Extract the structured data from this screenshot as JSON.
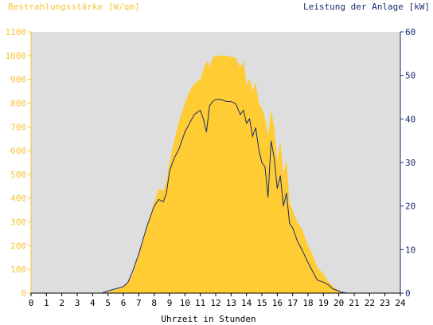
{
  "chart_data": {
    "type": "area",
    "title_left": "Bestrahlungsstärke [W/qm]",
    "title_right": "Leistung der Anlage [kW]",
    "xlabel": "Uhrzeit in Stunden",
    "xlim": [
      0,
      24
    ],
    "ylim_left": [
      0,
      1100
    ],
    "ylim_right": [
      0,
      60
    ],
    "x_ticks": [
      "0",
      "1",
      "2",
      "3",
      "4",
      "5",
      "6",
      "7",
      "8",
      "9",
      "10",
      "11",
      "12",
      "13",
      "14",
      "15",
      "16",
      "17",
      "18",
      "19",
      "20",
      "21",
      "22",
      "23",
      "24"
    ],
    "y_ticks_left": [
      "0",
      "100",
      "200",
      "300",
      "400",
      "500",
      "600",
      "700",
      "800",
      "900",
      "1000",
      "1100"
    ],
    "y_ticks_right": [
      "0",
      "10",
      "20",
      "30",
      "40",
      "50",
      "60"
    ],
    "colors": {
      "irradiance_fill": "#ffcc33",
      "power_line": "#1a2a6c",
      "plot_bg": "#dedede",
      "axis_left": "#f5c33b",
      "axis_right": "#1a2a6c"
    },
    "series": [
      {
        "unit": "W/qm",
        "axis": "left",
        "x": [
          0,
          4.6,
          5,
          5.5,
          6,
          6.3,
          6.6,
          7,
          7.5,
          8,
          8.3,
          8.6,
          8.8,
          9,
          9.3,
          9.6,
          10,
          10.3,
          10.6,
          11,
          11.3,
          11.5,
          11.6,
          11.8,
          12,
          12.3,
          12.7,
          13,
          13.3,
          13.6,
          13.8,
          14,
          14.2,
          14.4,
          14.6,
          14.8,
          15,
          15.2,
          15.4,
          15.6,
          15.8,
          16,
          16.2,
          16.4,
          16.6,
          16.8,
          17,
          17.3,
          17.6,
          18,
          18.3,
          18.6,
          19,
          19.3,
          19.6,
          20,
          20.2,
          20.5,
          21,
          24
        ],
        "y": [
          0,
          0,
          5,
          15,
          30,
          45,
          80,
          170,
          280,
          380,
          440,
          430,
          470,
          550,
          640,
          720,
          800,
          850,
          880,
          900,
          960,
          980,
          950,
          990,
          1000,
          1000,
          1000,
          995,
          990,
          950,
          980,
          880,
          900,
          850,
          890,
          800,
          780,
          740,
          660,
          770,
          700,
          560,
          640,
          500,
          560,
          380,
          350,
          300,
          270,
          200,
          160,
          110,
          80,
          50,
          30,
          10,
          5,
          2,
          0,
          0
        ]
      },
      {
        "unit": "kW",
        "axis": "right",
        "x": [
          0,
          4.6,
          5,
          5.5,
          6,
          6.3,
          6.6,
          7,
          7.5,
          8,
          8.3,
          8.6,
          8.8,
          9,
          9.3,
          9.6,
          10,
          10.3,
          10.6,
          11,
          11.2,
          11.4,
          11.6,
          11.8,
          12,
          12.3,
          12.7,
          13,
          13.3,
          13.6,
          13.8,
          14,
          14.2,
          14.4,
          14.6,
          14.8,
          15,
          15.2,
          15.4,
          15.6,
          15.8,
          16,
          16.2,
          16.4,
          16.6,
          16.8,
          17,
          17.3,
          17.6,
          18,
          18.3,
          18.6,
          19,
          19.3,
          19.6,
          20,
          20.2,
          20.5,
          21,
          24
        ],
        "y": [
          0,
          0,
          0.5,
          1,
          1.5,
          2.5,
          5,
          9,
          15,
          20,
          21.5,
          21,
          23,
          28,
          31,
          33,
          37,
          39,
          41,
          42,
          40,
          37,
          43,
          44,
          44.5,
          44.5,
          44,
          44,
          43.5,
          41,
          42,
          39,
          40,
          36,
          38,
          33,
          30,
          29,
          22,
          35,
          31,
          24,
          27,
          20,
          23,
          16,
          15,
          12,
          10,
          7,
          5,
          3,
          2.5,
          2,
          1,
          0.5,
          0.2,
          0,
          0,
          0
        ]
      }
    ]
  }
}
